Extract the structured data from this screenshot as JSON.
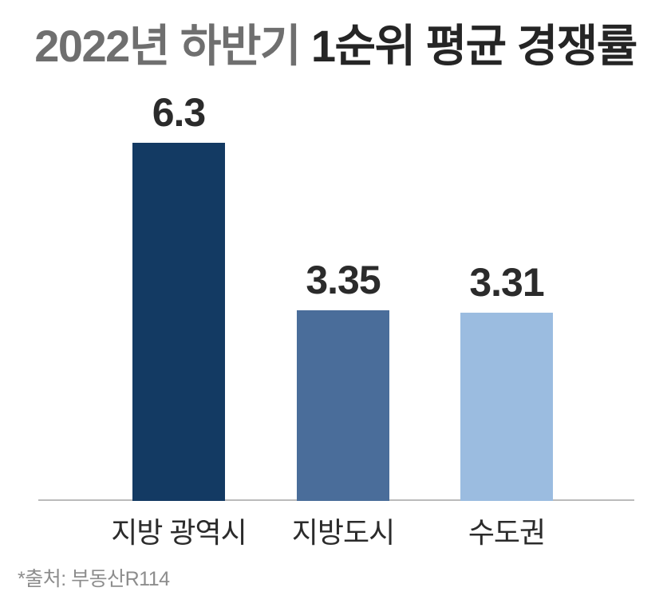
{
  "title": {
    "part1": "2022년 하반기",
    "part2": "1순위 평균 경쟁률",
    "part1_color": "#6f6f6f",
    "part2_color": "#252525"
  },
  "footer": {
    "source_note": "*출처: 부동산R114",
    "color": "#8d8d8d"
  },
  "chart_data": {
    "type": "bar",
    "title": "2022년 하반기 1순위 평균 경쟁률",
    "categories": [
      "지방 광역시",
      "지방도시",
      "수도권"
    ],
    "values": [
      6.3,
      3.35,
      3.31
    ],
    "value_labels": [
      "6.3",
      "3.35",
      "3.31"
    ],
    "bar_colors": [
      "#133A63",
      "#4A6D9A",
      "#9BBCE0"
    ],
    "xlabel": "",
    "ylabel": "",
    "ylim": [
      0,
      7
    ],
    "grid": false,
    "legend": false,
    "axis_line_color": "#bbbbbb",
    "value_label_color": "#2b2b2b",
    "category_label_color": "#2b2b2b",
    "source_note": "*출처: 부동산R114"
  }
}
